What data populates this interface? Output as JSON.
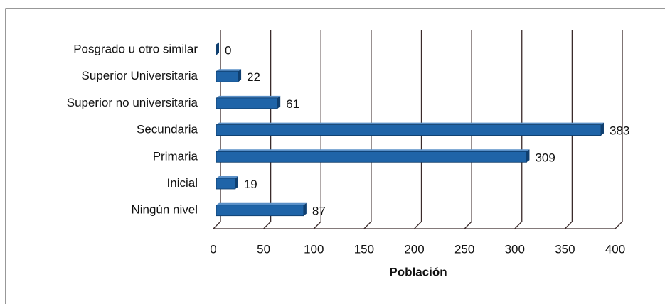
{
  "chart_data": {
    "type": "barh",
    "categories": [
      "Posgrado u otro similar",
      "Superior Universitaria",
      "Superior no universitaria",
      "Secundaria",
      "Primaria",
      "Inicial",
      "Ningún nivel"
    ],
    "values": [
      0,
      22,
      61,
      383,
      309,
      19,
      87
    ],
    "color": "#1f64a8",
    "xlabel": "Población",
    "xlim": [
      0,
      400
    ],
    "xticks": [
      0,
      50,
      100,
      150,
      200,
      250,
      300,
      350,
      400
    ],
    "grid": true
  }
}
